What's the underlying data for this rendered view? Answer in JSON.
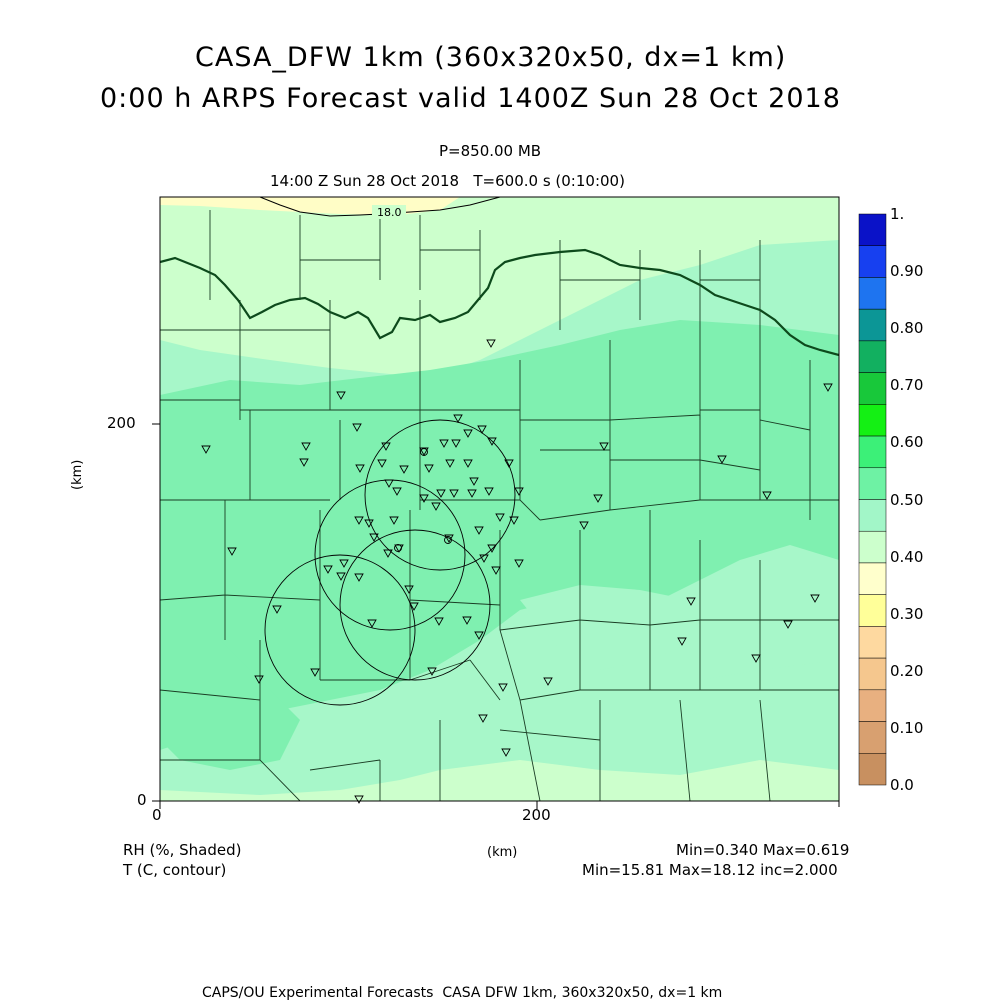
{
  "header": {
    "title_line1": "CASA_DFW 1km (360x320x50, dx=1 km)",
    "title_line2": "0:00 h ARPS Forecast valid 1400Z Sun 28 Oct 2018",
    "pressure_level": "P=850.00 MB",
    "valid_time": "14:00 Z Sun 28 Oct 2018   T=600.0 s (0:10:00)"
  },
  "axes": {
    "x_ticks": [
      "0",
      "200"
    ],
    "y_ticks": [
      "0",
      "200"
    ],
    "x_label": "(km)",
    "y_label": "(km)"
  },
  "map": {
    "contour_label": "18.0",
    "colors": {
      "rh_0_35_40": "#ccffcc",
      "rh_0_40_45": "#a7f7c9",
      "rh_0_45_50": "#7ff0b0",
      "rh_0_30_35": "#fffdc6",
      "county_line": "#1a3d24",
      "state_line": "#0d4a1c",
      "contour": "#000000"
    },
    "radar_sites_count": 5
  },
  "colorbar": {
    "labels": [
      "1.",
      "0.90",
      "0.80",
      "0.70",
      "0.60",
      "0.50",
      "0.40",
      "0.30",
      "0.20",
      "0.10",
      "0.0"
    ],
    "colors": [
      "#0a12c8",
      "#1740f0",
      "#1e74f0",
      "#0c9696",
      "#12b060",
      "#18c83a",
      "#14f014",
      "#3cf078",
      "#6ef2a4",
      "#a2f6c8",
      "#ccffcc",
      "#ffffcc",
      "#ffff99",
      "#fed9a0",
      "#f5c78e",
      "#e8b080",
      "#d8a070",
      "#c89060"
    ]
  },
  "legend": {
    "shaded_label": "RH (%, Shaded)",
    "contour_label": "T (C, contour)",
    "x_units": "(km)",
    "rh_stats": "Min=0.340 Max=0.619",
    "t_stats": "Min=15.81 Max=18.12 inc=2.000"
  },
  "footer": {
    "credit": "CAPS/OU Experimental Forecasts  CASA DFW 1km, 360x320x50, dx=1 km"
  }
}
